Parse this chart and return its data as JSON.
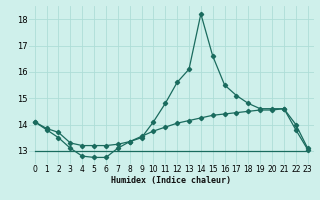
{
  "title": "",
  "xlabel": "Humidex (Indice chaleur)",
  "x": [
    0,
    1,
    2,
    3,
    4,
    5,
    6,
    7,
    8,
    9,
    10,
    11,
    12,
    13,
    14,
    15,
    16,
    17,
    18,
    19,
    20,
    21,
    22,
    23
  ],
  "line_max": [
    14.1,
    13.8,
    13.5,
    13.1,
    12.8,
    12.75,
    12.75,
    13.1,
    13.35,
    13.5,
    14.1,
    14.8,
    15.6,
    16.1,
    18.2,
    16.6,
    15.5,
    15.1,
    14.8,
    14.6,
    14.6,
    14.6,
    13.8,
    13.05
  ],
  "line_mean": [
    14.1,
    13.85,
    13.7,
    13.3,
    13.2,
    13.2,
    13.2,
    13.25,
    13.35,
    13.55,
    13.75,
    13.9,
    14.05,
    14.15,
    14.25,
    14.35,
    14.4,
    14.45,
    14.5,
    14.55,
    14.55,
    14.6,
    14.0,
    13.1
  ],
  "line_min": [
    13.0,
    13.0,
    13.0,
    13.0,
    13.0,
    13.0,
    13.0,
    13.0,
    13.0,
    13.0,
    13.0,
    13.0,
    13.0,
    13.0,
    13.0,
    13.0,
    13.0,
    13.0,
    13.0,
    13.0,
    13.0,
    13.0,
    13.0,
    13.0
  ],
  "line_color": "#1a6b5e",
  "bg_color": "#cff0eb",
  "grid_color": "#aeddd7",
  "ylim": [
    12.5,
    18.5
  ],
  "xlim": [
    -0.5,
    23.5
  ],
  "yticks": [
    13,
    14,
    15,
    16,
    17,
    18
  ],
  "xticks": [
    0,
    1,
    2,
    3,
    4,
    5,
    6,
    7,
    8,
    9,
    10,
    11,
    12,
    13,
    14,
    15,
    16,
    17,
    18,
    19,
    20,
    21,
    22,
    23
  ],
  "marker": "D",
  "markersize": 2.2,
  "linewidth": 0.9,
  "tick_fontsize": 5.5,
  "xlabel_fontsize": 6.0
}
